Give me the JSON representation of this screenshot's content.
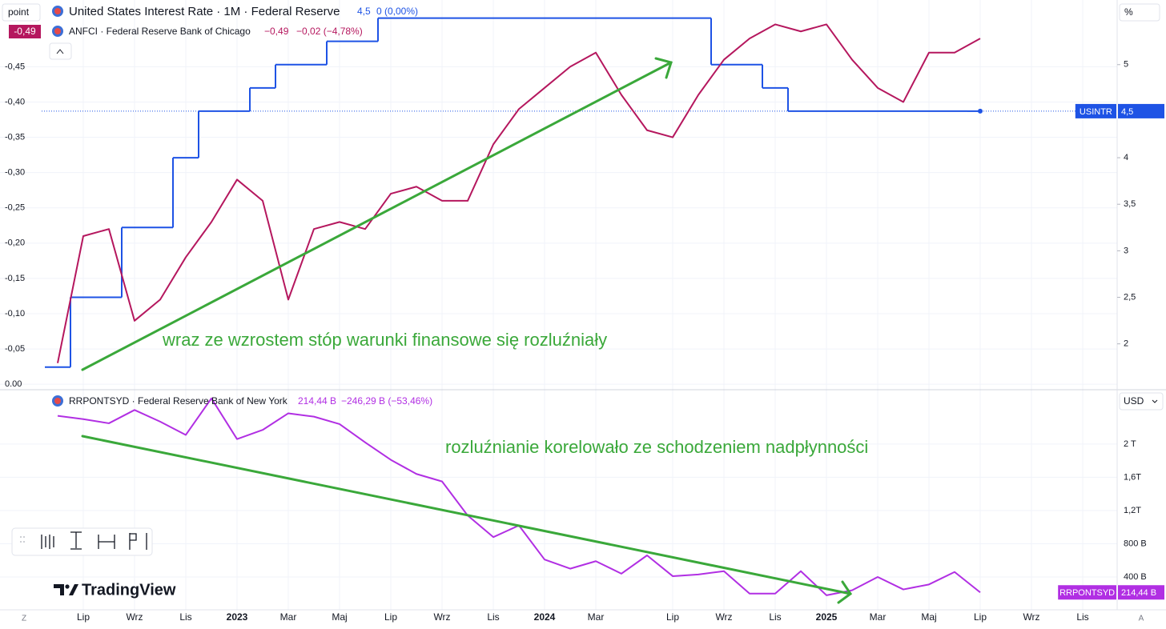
{
  "chart_data": [
    {
      "type": "line",
      "y_unit": "point",
      "y2_unit": "%",
      "ylim": [
        0.01,
        -0.54
      ],
      "yticks": [
        {
          "value": 0,
          "label": "0.00"
        },
        {
          "value": -0.05,
          "label": "-0,05"
        },
        {
          "value": -0.1,
          "label": "-0,10"
        },
        {
          "value": -0.15,
          "label": "-0,15"
        },
        {
          "value": -0.2,
          "label": "-0,20"
        },
        {
          "value": -0.25,
          "label": "-0,25"
        },
        {
          "value": -0.3,
          "label": "-0,30"
        },
        {
          "value": -0.35,
          "label": "-0,35"
        },
        {
          "value": -0.4,
          "label": "-0,40"
        },
        {
          "value": -0.45,
          "label": "-0,45"
        }
      ],
      "y2lim": [
        1.49,
        5.66
      ],
      "y2ticks": [
        2,
        {
          "value": 2.5,
          "label": "2,5"
        },
        3,
        {
          "value": 3.5,
          "label": "3,5"
        },
        4,
        5
      ],
      "grid": true,
      "series": [
        {
          "name": "United States Interest Rate · 1M · Federal Reserve",
          "color": "#1e53e5",
          "axis": "y2",
          "step": true,
          "last": "4,5",
          "change": "0 (0,00%)",
          "tag_name": "USINTR",
          "tag": "4,5",
          "values": [
            1.75,
            2.5,
            2.5,
            3.25,
            3.25,
            4.0,
            4.5,
            4.5,
            4.75,
            5.0,
            5.0,
            5.25,
            5.25,
            5.5,
            5.5,
            5.5,
            5.5,
            5.5,
            5.5,
            5.5,
            5.5,
            5.5,
            5.5,
            5.5,
            5.5,
            5.5,
            5.0,
            5.0,
            4.75,
            4.5,
            4.5,
            4.5,
            4.5,
            4.5,
            4.5,
            4.5,
            4.5,
            null,
            null,
            null,
            null
          ]
        },
        {
          "name": "ANFCI · Federal Reserve Bank of Chicago",
          "color": "#b5175e",
          "axis": "y",
          "last": "−0,49",
          "change": "−0,02 (−4,78%)",
          "tag": "-0,49",
          "values": [
            -0.03,
            -0.21,
            -0.22,
            -0.09,
            -0.12,
            -0.18,
            -0.23,
            -0.29,
            -0.26,
            -0.12,
            -0.22,
            -0.23,
            -0.22,
            -0.27,
            -0.28,
            -0.26,
            -0.26,
            -0.34,
            -0.39,
            -0.42,
            -0.45,
            -0.47,
            -0.41,
            -0.36,
            -0.35,
            -0.41,
            -0.46,
            -0.49,
            -0.51,
            -0.5,
            -0.51,
            -0.46,
            -0.42,
            -0.4,
            -0.47,
            -0.47,
            -0.49,
            null,
            null,
            null,
            null
          ]
        }
      ],
      "annotations": [
        "wraz ze wzrostem stóp warunki finansowe się rozluźniały"
      ]
    },
    {
      "type": "line",
      "y_unit": "USD",
      "categories": [
        null,
        "Lip",
        null,
        "Wrz",
        null,
        "Lis",
        null,
        "2023",
        null,
        "Mar",
        null,
        "Maj",
        null,
        "Lip",
        null,
        "Wrz",
        null,
        "Lis",
        null,
        "2024",
        null,
        "Mar",
        null,
        null,
        "Lip",
        null,
        "Wrz",
        null,
        "Lis",
        null,
        "2025",
        null,
        "Mar",
        null,
        "Maj",
        null,
        "Lip",
        null,
        "Wrz",
        null,
        "Lis"
      ],
      "ylim": [
        5,
        2625
      ],
      "yticks": [
        {
          "value": 400,
          "label": "400 B"
        },
        {
          "value": 800,
          "label": "800 B"
        },
        {
          "value": 1200,
          "label": "1,2T"
        },
        {
          "value": 1600,
          "label": "1,6T"
        },
        {
          "value": 2000,
          "label": "2 T"
        }
      ],
      "grid": true,
      "series": [
        {
          "name": "RRPONTSYD · Federal Reserve Bank of New York",
          "color": "#b12fe3",
          "last": "214,44 B",
          "change": "−246,29 B (−53,46%)",
          "tag_name": "RRPONTSYD",
          "tag": "214,44 B",
          "values": [
            2340,
            2300,
            2250,
            2410,
            2270,
            2110,
            2550,
            2060,
            2170,
            2370,
            2330,
            2240,
            2020,
            1810,
            1640,
            1550,
            1140,
            880,
            1020,
            610,
            500,
            590,
            440,
            660,
            410,
            430,
            470,
            200,
            200,
            470,
            180,
            240,
            400,
            250,
            310,
            460,
            214.44,
            null,
            null,
            null,
            null
          ]
        }
      ],
      "annotations": [
        "rozluźnianie korelowało ze schodzeniem nadpłynności"
      ]
    }
  ],
  "ui": {
    "logo": "TradingView",
    "corner_left": "Z",
    "corner_right": "A"
  }
}
